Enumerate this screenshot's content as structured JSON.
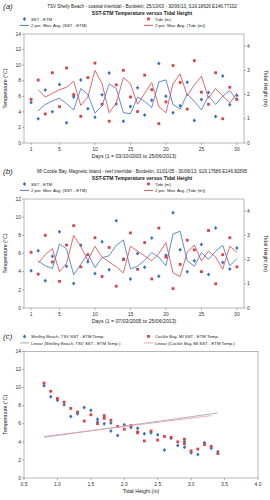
{
  "chart_data": [
    {
      "type": "line",
      "annotations": [
        "(a)"
      ],
      "title": "TSV Shelly Beach - coastal intertidal - Burdekin, 25/10/03 - 30/06/13, S19.18626 E146.77102",
      "subtitle": "SST-ETM Temperature versus Tidal Height",
      "x_label": "Days (1 = 03/10/2003 to 25/06/2013)",
      "y_label": "Temperature (°C)",
      "y2_label": "Tidal Height (m)",
      "x": [
        1,
        2,
        3,
        4,
        5,
        6,
        7,
        8,
        9,
        10,
        11,
        12,
        13,
        14,
        15,
        16,
        17,
        18,
        19,
        20,
        21,
        22,
        23,
        24,
        25,
        26,
        27,
        28,
        29,
        30
      ],
      "xlim": [
        0,
        31
      ],
      "xticks": [
        1,
        5,
        10,
        15,
        20,
        25,
        30
      ],
      "ylim": [
        0,
        14
      ],
      "yticks": [
        0,
        2,
        4,
        6,
        8,
        10,
        12,
        14
      ],
      "y2lim": [
        0,
        4.5
      ],
      "y2ticks": [
        0,
        1,
        2,
        3,
        4
      ],
      "grid": false,
      "legend": "top",
      "series": [
        {
          "name": "SST - ETM",
          "type": "scatter",
          "color": "#3b6fc4",
          "marker": "diamond",
          "values": [
            5.2,
            3.1,
            6.8,
            4.0,
            7.5,
            2.6,
            5.9,
            8.1,
            4.4,
            3.3,
            6.2,
            9.0,
            5.0,
            2.8,
            4.7,
            7.1,
            3.6,
            5.5,
            10.2,
            6.0,
            3.9,
            4.8,
            7.8,
            2.9,
            5.6,
            6.5,
            3.4,
            8.6,
            4.9,
            6.1
          ]
        },
        {
          "name": "Tide (m)",
          "type": "scatter",
          "color": "#d9434a",
          "marker": "square",
          "axis": "y2",
          "values": [
            1.8,
            2.6,
            1.2,
            2.9,
            1.5,
            3.1,
            2.0,
            1.1,
            2.7,
            3.3,
            1.6,
            0.9,
            2.4,
            3.0,
            1.9,
            1.3,
            2.8,
            2.2,
            0.8,
            1.7,
            3.2,
            2.5,
            1.4,
            3.4,
            2.1,
            1.6,
            2.9,
            1.0,
            2.3,
            1.8
          ]
        },
        {
          "name": "2 per. Mov. Avg. (SST - ETM)",
          "type": "line",
          "color": "#3b6fc4",
          "marker": "none",
          "line_style": "solid",
          "values": [
            null,
            4.15,
            4.95,
            5.4,
            5.75,
            5.05,
            4.25,
            7.0,
            6.25,
            3.85,
            4.75,
            7.6,
            7.0,
            3.9,
            3.75,
            5.9,
            5.35,
            4.55,
            7.85,
            8.1,
            4.95,
            4.35,
            6.3,
            5.35,
            4.25,
            6.05,
            4.95,
            6.0,
            6.75,
            5.5
          ]
        },
        {
          "name": "2 per. Mov. Avg. (Tide (m))",
          "type": "line",
          "color": "#d9434a",
          "marker": "none",
          "line_style": "solid",
          "axis": "y2",
          "values": [
            null,
            2.2,
            1.9,
            2.05,
            2.2,
            2.3,
            2.55,
            1.55,
            1.9,
            3.0,
            2.45,
            1.25,
            1.65,
            2.7,
            2.45,
            1.6,
            2.05,
            2.5,
            1.5,
            1.25,
            2.45,
            2.85,
            1.95,
            2.4,
            2.75,
            1.85,
            2.25,
            1.95,
            1.65,
            2.05
          ]
        }
      ]
    },
    {
      "type": "line",
      "annotations": [
        "(b)"
      ],
      "title": "MI Cockle Bay, Magnetic Island - reef intertidal - Burdekin, 31/01/05 - 30/06/13, S19.17686 E146.82895",
      "subtitle": "SST-ETM Temperature versus Tidal Height",
      "x_label": "Days (1 = 07/03/2005 to 25/06/2013)",
      "y_label": "Temperature (°C)",
      "y2_label": "Tidal Height (m)",
      "x": [
        1,
        2,
        3,
        4,
        5,
        6,
        7,
        8,
        9,
        10,
        11,
        12,
        13,
        14,
        15,
        16,
        17,
        18,
        19,
        20,
        21,
        22,
        23,
        24,
        25,
        26,
        27,
        28,
        29,
        30
      ],
      "xlim": [
        0,
        31
      ],
      "xticks": [
        1,
        5,
        10,
        15,
        20,
        25,
        30
      ],
      "ylim": [
        0,
        12
      ],
      "yticks": [
        0,
        2,
        4,
        6,
        8,
        10,
        12
      ],
      "y2lim": [
        0,
        4.5
      ],
      "y2ticks": [
        0,
        1,
        2,
        3,
        4
      ],
      "grid": false,
      "legend": "top",
      "series": [
        {
          "name": "SST - ETM",
          "type": "scatter",
          "color": "#3b6fc4",
          "marker": "diamond",
          "values": [
            4.1,
            6.3,
            3.0,
            5.7,
            8.4,
            4.6,
            2.7,
            6.9,
            5.1,
            3.8,
            7.3,
            4.2,
            9.6,
            5.4,
            3.2,
            6.0,
            4.5,
            7.7,
            3.5,
            5.8,
            10.5,
            6.4,
            4.0,
            5.2,
            7.0,
            3.7,
            8.8,
            5.0,
            4.3,
            6.6
          ]
        },
        {
          "name": "Tide (m)",
          "type": "scatter",
          "color": "#d9434a",
          "marker": "square",
          "axis": "y2",
          "values": [
            2.3,
            1.4,
            3.0,
            1.9,
            1.1,
            2.6,
            3.4,
            1.7,
            2.2,
            2.9,
            1.3,
            2.5,
            0.9,
            2.0,
            3.1,
            1.6,
            2.7,
            1.2,
            3.3,
            2.1,
            0.8,
            1.8,
            2.8,
            2.4,
            1.5,
            3.2,
            1.0,
            2.2,
            2.9,
            1.7
          ]
        },
        {
          "name": "2 per. Mov. Avg. (SST - ETM)",
          "type": "line",
          "color": "#3b6fc4",
          "marker": "none",
          "line_style": "solid",
          "values": [
            null,
            5.2,
            4.65,
            4.35,
            7.05,
            6.5,
            3.65,
            4.8,
            6.0,
            4.45,
            5.55,
            5.75,
            6.9,
            7.5,
            4.3,
            4.6,
            5.25,
            6.1,
            5.6,
            4.65,
            8.15,
            8.45,
            5.2,
            4.6,
            6.1,
            5.35,
            6.25,
            6.9,
            4.65,
            5.45
          ]
        },
        {
          "name": "2 per. Mov. Avg. (Tide (m))",
          "type": "line",
          "color": "#d9434a",
          "marker": "none",
          "line_style": "solid",
          "axis": "y2",
          "values": [
            null,
            1.85,
            2.2,
            2.45,
            1.5,
            1.85,
            3.0,
            2.55,
            1.95,
            2.55,
            2.1,
            1.9,
            1.7,
            1.45,
            2.55,
            2.35,
            2.15,
            1.95,
            2.25,
            2.7,
            1.45,
            1.3,
            2.3,
            2.6,
            1.95,
            2.35,
            2.1,
            1.6,
            2.55,
            2.3
          ]
        }
      ]
    },
    {
      "type": "scatter",
      "annotations": [
        "(c)"
      ],
      "x_label": "Tidal Height (m)",
      "y_label": "Temperature (°C)",
      "xlim": [
        0.5,
        4.0
      ],
      "xticks": [
        0.5,
        {
          "value": 1,
          "label": "1.0"
        },
        1.5,
        {
          "value": 2,
          "label": "2.0"
        },
        2.5,
        {
          "value": 3,
          "label": "3.0"
        },
        3.5,
        {
          "value": 4,
          "label": "4.0"
        }
      ],
      "ylim": [
        0,
        14
      ],
      "yticks": [
        0,
        2,
        4,
        6,
        8,
        10,
        12,
        14
      ],
      "grid": false,
      "legend": "top",
      "series": [
        {
          "name": "Shelley Beach, TSV SST - ETM Temp.",
          "type": "scatter",
          "color": "#3b6fc4",
          "marker": "diamond",
          "x": [
            1.8,
            2.6,
            1.2,
            2.9,
            1.5,
            3.1,
            2.0,
            1.1,
            2.7,
            3.3,
            1.6,
            0.9,
            2.4,
            3.0,
            1.9,
            1.3,
            2.8,
            2.2,
            0.8,
            1.7,
            3.2,
            2.5,
            1.4,
            3.4,
            2.1,
            1.6,
            2.9,
            1.0,
            2.3,
            1.8
          ],
          "values": [
            5.2,
            3.1,
            6.8,
            4.0,
            7.5,
            2.6,
            5.9,
            8.1,
            4.4,
            3.3,
            6.2,
            9.0,
            5.0,
            2.8,
            4.7,
            7.1,
            3.6,
            5.5,
            10.2,
            6.0,
            3.9,
            4.8,
            7.8,
            2.9,
            5.6,
            6.5,
            3.4,
            8.6,
            4.9,
            6.1
          ]
        },
        {
          "name": "Cockle Bay, MI SST - ETM Temp.",
          "type": "scatter",
          "color": "#d9434a",
          "marker": "square",
          "x": [
            2.3,
            1.4,
            3.0,
            1.9,
            1.1,
            2.6,
            3.4,
            1.7,
            2.2,
            2.9,
            1.3,
            2.5,
            0.9,
            2.0,
            3.1,
            1.6,
            2.7,
            1.2,
            3.3,
            2.1,
            0.8,
            1.8,
            2.8,
            2.4,
            1.5,
            3.2,
            1.0,
            2.2,
            2.9,
            1.7
          ],
          "values": [
            4.1,
            6.3,
            3.0,
            5.7,
            8.4,
            4.6,
            2.7,
            6.9,
            5.1,
            3.8,
            7.3,
            4.2,
            9.6,
            5.4,
            3.2,
            6.0,
            4.5,
            7.7,
            3.5,
            5.8,
            10.5,
            6.4,
            4.0,
            5.2,
            7.0,
            3.7,
            8.8,
            5.0,
            4.3,
            6.6
          ]
        },
        {
          "name": "Linear (Shelley Beach, TSV SST - ETM Temp.)",
          "type": "line",
          "color": "#9e9e9e",
          "marker": "none",
          "line_style": "solid",
          "x": [
            0.8,
            3.4
          ],
          "values": [
            4.5,
            7.2
          ]
        },
        {
          "name": "Linear (Cockle Bay, MI SST - ETM Temp.)",
          "type": "line",
          "color": "#e79aa8",
          "marker": "none",
          "line_style": "solid",
          "x": [
            0.8,
            3.3
          ],
          "values": [
            4.6,
            6.9
          ]
        }
      ]
    }
  ]
}
